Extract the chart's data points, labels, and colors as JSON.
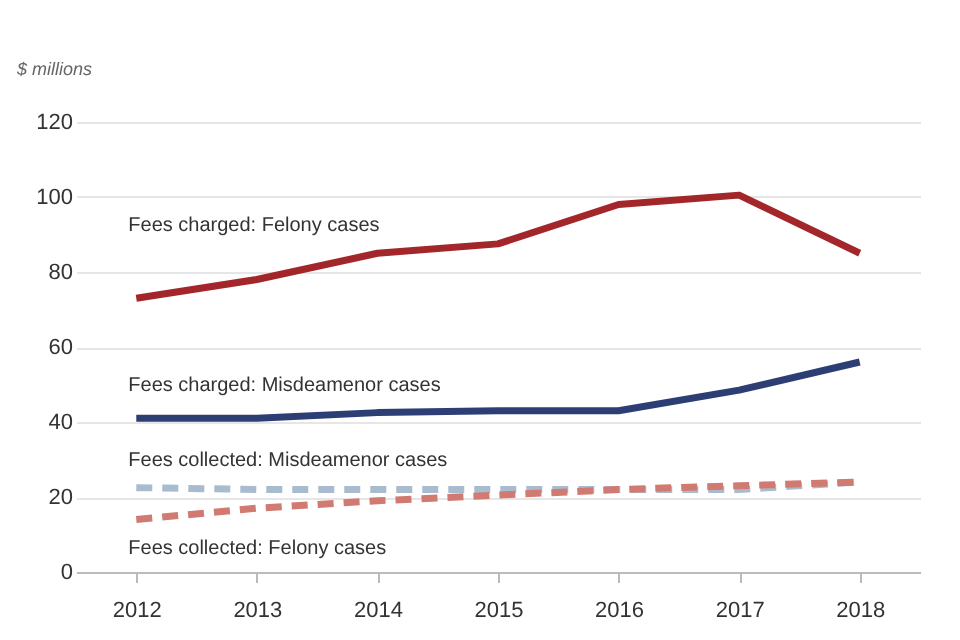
{
  "chart_data": {
    "type": "line",
    "ylabel": "$ millions",
    "categories": [
      "2012",
      "2013",
      "2014",
      "2015",
      "2016",
      "2017",
      "2018"
    ],
    "series": [
      {
        "name": "Fees charged: Felony cases",
        "color": "#a3262a",
        "line_style": "solid",
        "values": [
          73,
          78,
          85,
          87.5,
          98,
          100.5,
          85
        ]
      },
      {
        "name": "Fees charged: Misdeamenor cases",
        "color": "#2c3e73",
        "line_style": "solid",
        "values": [
          41,
          41,
          42.5,
          43,
          43,
          48.5,
          56
        ]
      },
      {
        "name": "Fees collected: Misdeamenor cases",
        "color": "#a9bccf",
        "line_style": "dashed",
        "values": [
          22.5,
          22,
          22,
          22,
          22,
          22,
          24
        ]
      },
      {
        "name": "Fees collected: Felony cases",
        "color": "#d07a72",
        "line_style": "dashed",
        "values": [
          14,
          17,
          19,
          20.5,
          22,
          23,
          24
        ]
      }
    ],
    "ylim": [
      0,
      120
    ],
    "yticks": [
      0,
      20,
      40,
      60,
      80,
      100,
      120
    ],
    "grid": "y",
    "marker": "none"
  }
}
